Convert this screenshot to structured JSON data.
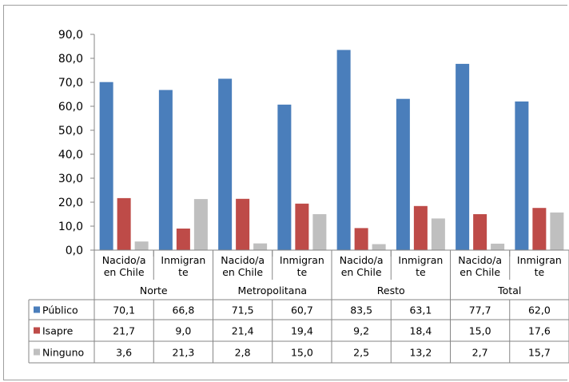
{
  "chart_data": {
    "type": "bar",
    "title": "",
    "xlabel": "",
    "ylabel": "",
    "ylim": [
      0,
      90
    ],
    "yticks": [
      "0,0",
      "10,0",
      "20,0",
      "30,0",
      "40,0",
      "50,0",
      "60,0",
      "70,0",
      "80,0",
      "90,0"
    ],
    "grid": false,
    "legend": "data-table",
    "groups": [
      "Norte",
      "Metropolitana",
      "Resto",
      "Total"
    ],
    "categories": [
      {
        "group": "Norte",
        "label_line1": "Nacido/a",
        "label_line2": "en Chile"
      },
      {
        "group": "Norte",
        "label_line1": "Inmigran",
        "label_line2": "te"
      },
      {
        "group": "Metropolitana",
        "label_line1": "Nacido/a",
        "label_line2": "en Chile"
      },
      {
        "group": "Metropolitana",
        "label_line1": "Inmigran",
        "label_line2": "te"
      },
      {
        "group": "Resto",
        "label_line1": "Nacido/a",
        "label_line2": "en Chile"
      },
      {
        "group": "Resto",
        "label_line1": "Inmigran",
        "label_line2": "te"
      },
      {
        "group": "Total",
        "label_line1": "Nacido/a",
        "label_line2": "en Chile"
      },
      {
        "group": "Total",
        "label_line1": "Inmigran",
        "label_line2": "te"
      }
    ],
    "series": [
      {
        "name": "Público",
        "color": "#4a7ebb",
        "values": [
          70.1,
          66.8,
          71.5,
          60.7,
          83.5,
          63.1,
          77.7,
          62.0
        ],
        "labels": [
          "70,1",
          "66,8",
          "71,5",
          "60,7",
          "83,5",
          "63,1",
          "77,7",
          "62,0"
        ]
      },
      {
        "name": "Isapre",
        "color": "#be4b48",
        "values": [
          21.7,
          9.0,
          21.4,
          19.4,
          9.2,
          18.4,
          15.0,
          17.6
        ],
        "labels": [
          "21,7",
          "9,0",
          "21,4",
          "19,4",
          "9,2",
          "18,4",
          "15,0",
          "17,6"
        ]
      },
      {
        "name": "Ninguno",
        "color": "#bfbfbf",
        "values": [
          3.6,
          21.3,
          2.8,
          15.0,
          2.5,
          13.2,
          2.7,
          15.7
        ],
        "labels": [
          "3,6",
          "21,3",
          "2,8",
          "15,0",
          "2,5",
          "13,2",
          "2,7",
          "15,7"
        ]
      }
    ]
  }
}
